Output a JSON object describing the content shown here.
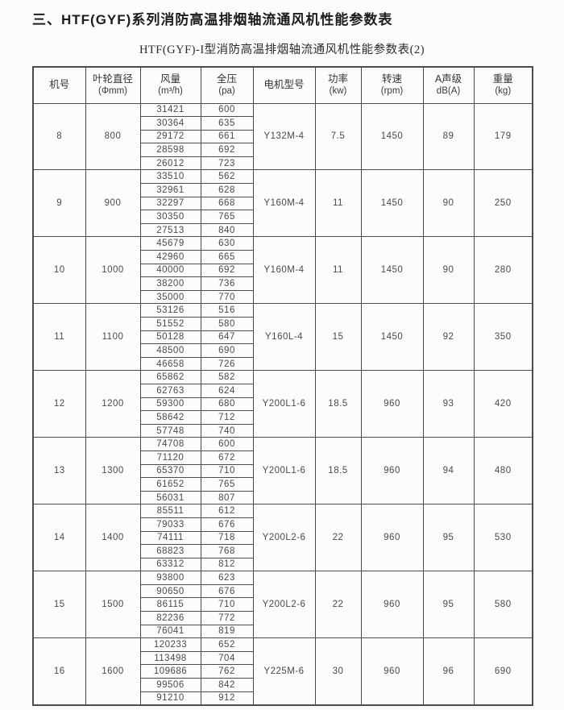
{
  "page": {
    "title": "三、HTF(GYF)系列消防高温排烟轴流通风机性能参数表",
    "subtitle": "HTF(GYF)-I型消防高温排烟轴流通风机性能参数表(2)"
  },
  "colors": {
    "background": "#fcfcfc",
    "border": "#4c4c4c",
    "text": "#3f3f3f"
  },
  "table": {
    "columns": [
      {
        "label": "机号",
        "unit": ""
      },
      {
        "label": "叶轮直径",
        "unit": "(Φmm)"
      },
      {
        "label": "风量",
        "unit": "(m³/h)"
      },
      {
        "label": "全压",
        "unit": "(pa)"
      },
      {
        "label": "电机型号",
        "unit": ""
      },
      {
        "label": "功率",
        "unit": "(kw)"
      },
      {
        "label": "转速",
        "unit": "(rpm)"
      },
      {
        "label": "A声级",
        "unit": "dB(A)"
      },
      {
        "label": "重量",
        "unit": "(kg)"
      }
    ],
    "groups": [
      {
        "no": "8",
        "diameter": "800",
        "rows": [
          [
            "31421",
            "600"
          ],
          [
            "30364",
            "635"
          ],
          [
            "29172",
            "661"
          ],
          [
            "28598",
            "692"
          ],
          [
            "26012",
            "723"
          ]
        ],
        "motor": "Y132M-4",
        "power": "7.5",
        "speed": "1450",
        "noise": "89",
        "weight": "179"
      },
      {
        "no": "9",
        "diameter": "900",
        "rows": [
          [
            "33510",
            "562"
          ],
          [
            "32961",
            "628"
          ],
          [
            "32297",
            "668"
          ],
          [
            "30350",
            "765"
          ],
          [
            "27513",
            "840"
          ]
        ],
        "motor": "Y160M-4",
        "power": "11",
        "speed": "1450",
        "noise": "90",
        "weight": "250"
      },
      {
        "no": "10",
        "diameter": "1000",
        "rows": [
          [
            "45679",
            "630"
          ],
          [
            "42960",
            "665"
          ],
          [
            "40000",
            "692"
          ],
          [
            "38200",
            "736"
          ],
          [
            "35000",
            "770"
          ]
        ],
        "motor": "Y160M-4",
        "power": "11",
        "speed": "1450",
        "noise": "90",
        "weight": "280"
      },
      {
        "no": "11",
        "diameter": "1100",
        "rows": [
          [
            "53126",
            "516"
          ],
          [
            "51552",
            "580"
          ],
          [
            "50128",
            "647"
          ],
          [
            "48500",
            "690"
          ],
          [
            "46658",
            "726"
          ]
        ],
        "motor": "Y160L-4",
        "power": "15",
        "speed": "1450",
        "noise": "92",
        "weight": "350"
      },
      {
        "no": "12",
        "diameter": "1200",
        "rows": [
          [
            "65862",
            "582"
          ],
          [
            "62763",
            "624"
          ],
          [
            "59300",
            "680"
          ],
          [
            "58642",
            "712"
          ],
          [
            "57748",
            "740"
          ]
        ],
        "motor": "Y200L1-6",
        "power": "18.5",
        "speed": "960",
        "noise": "93",
        "weight": "420"
      },
      {
        "no": "13",
        "diameter": "1300",
        "rows": [
          [
            "74708",
            "600"
          ],
          [
            "71120",
            "672"
          ],
          [
            "65370",
            "710"
          ],
          [
            "61652",
            "765"
          ],
          [
            "56031",
            "807"
          ]
        ],
        "motor": "Y200L1-6",
        "power": "18.5",
        "speed": "960",
        "noise": "94",
        "weight": "480"
      },
      {
        "no": "14",
        "diameter": "1400",
        "rows": [
          [
            "85511",
            "612"
          ],
          [
            "79033",
            "676"
          ],
          [
            "74111",
            "718"
          ],
          [
            "68823",
            "768"
          ],
          [
            "63312",
            "812"
          ]
        ],
        "motor": "Y200L2-6",
        "power": "22",
        "speed": "960",
        "noise": "95",
        "weight": "530"
      },
      {
        "no": "15",
        "diameter": "1500",
        "rows": [
          [
            "93800",
            "623"
          ],
          [
            "90650",
            "676"
          ],
          [
            "86115",
            "710"
          ],
          [
            "82236",
            "772"
          ],
          [
            "76041",
            "819"
          ]
        ],
        "motor": "Y200L2-6",
        "power": "22",
        "speed": "960",
        "noise": "95",
        "weight": "580"
      },
      {
        "no": "16",
        "diameter": "1600",
        "rows": [
          [
            "120233",
            "652"
          ],
          [
            "113498",
            "704"
          ],
          [
            "109686",
            "762"
          ],
          [
            "99506",
            "842"
          ],
          [
            "91210",
            "912"
          ]
        ],
        "motor": "Y225M-6",
        "power": "30",
        "speed": "960",
        "noise": "96",
        "weight": "690"
      }
    ]
  }
}
